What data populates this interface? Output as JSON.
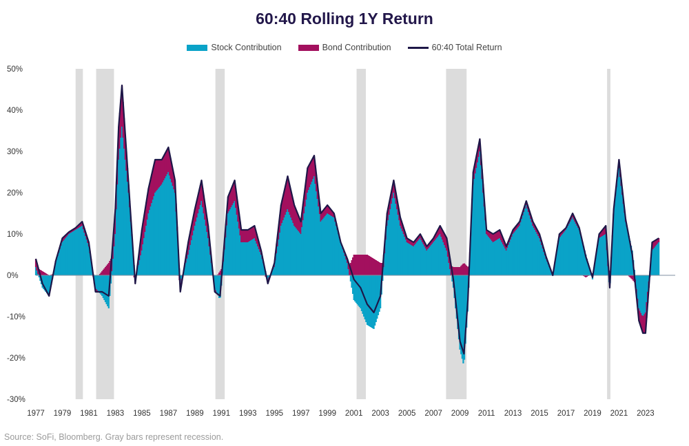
{
  "title": "60:40 Rolling 1Y Return",
  "source": "Source: SoFi, Bloomberg. Gray bars represent recession.",
  "colors": {
    "stock": "#0aa3c8",
    "bond": "#a3105e",
    "total": "#1e1748",
    "recession": "#dcdcdc",
    "zero_line": "#7f8fa0"
  },
  "legend": [
    {
      "label": "Stock Contribution",
      "kind": "bar",
      "color": "#0aa3c8"
    },
    {
      "label": "Bond Contribution",
      "kind": "bar",
      "color": "#a3105e"
    },
    {
      "label": "60:40 Total Return",
      "kind": "line",
      "color": "#1e1748"
    }
  ],
  "chart_data": {
    "type": "bar",
    "stacked": true,
    "title": "60:40 Rolling 1Y Return",
    "xlabel": "",
    "ylabel": "",
    "xlim": [
      1977,
      2024.2
    ],
    "ylim": [
      -30,
      50
    ],
    "y_ticks": [
      -30,
      -20,
      -10,
      0,
      10,
      20,
      30,
      40,
      50
    ],
    "y_tick_labels": [
      "-30%",
      "-20%",
      "-10%",
      "0%",
      "10%",
      "20%",
      "30%",
      "40%",
      "50%"
    ],
    "x_ticks": [
      1977,
      1979,
      1981,
      1983,
      1985,
      1987,
      1989,
      1991,
      1993,
      1995,
      1997,
      1999,
      2001,
      2003,
      2005,
      2007,
      2009,
      2011,
      2013,
      2015,
      2017,
      2019,
      2021,
      2023
    ],
    "x_tick_labels": [
      "1977",
      "1979",
      "1981",
      "1983",
      "1985",
      "1987",
      "1989",
      "1991",
      "1993",
      "1995",
      "1997",
      "1999",
      "2001",
      "2003",
      "2005",
      "2007",
      "2009",
      "2011",
      "2013",
      "2015",
      "2017",
      "2019",
      "2021",
      "2023"
    ],
    "recessions": [
      [
        1980.0,
        1980.55
      ],
      [
        1981.55,
        1982.9
      ],
      [
        1990.55,
        1991.25
      ],
      [
        2001.2,
        2001.9
      ],
      [
        2007.95,
        2009.5
      ],
      [
        2020.1,
        2020.35
      ]
    ],
    "series": [
      {
        "name": "Stock Contribution",
        "kind": "bar",
        "x": [
          1977.0,
          1977.5,
          1978.0,
          1978.5,
          1979.0,
          1979.5,
          1980.0,
          1980.5,
          1981.0,
          1981.5,
          1982.0,
          1982.5,
          1983.0,
          1983.25,
          1983.5,
          1984.0,
          1984.5,
          1985.0,
          1985.5,
          1986.0,
          1986.5,
          1987.0,
          1987.5,
          1987.9,
          1988.5,
          1989.0,
          1989.5,
          1990.0,
          1990.5,
          1990.9,
          1991.5,
          1992.0,
          1992.5,
          1993.0,
          1993.5,
          1994.0,
          1994.5,
          1995.0,
          1995.5,
          1996.0,
          1996.5,
          1997.0,
          1997.5,
          1998.0,
          1998.5,
          1999.0,
          1999.5,
          2000.0,
          2000.5,
          2001.0,
          2001.5,
          2002.0,
          2002.5,
          2003.0,
          2003.5,
          2004.0,
          2004.5,
          2005.0,
          2005.5,
          2006.0,
          2006.5,
          2007.0,
          2007.5,
          2008.0,
          2008.5,
          2009.0,
          2009.3,
          2009.6,
          2010.0,
          2010.5,
          2011.0,
          2011.5,
          2012.0,
          2012.5,
          2013.0,
          2013.5,
          2014.0,
          2014.5,
          2015.0,
          2015.5,
          2016.0,
          2016.5,
          2017.0,
          2017.5,
          2018.0,
          2018.5,
          2019.0,
          2019.5,
          2020.0,
          2020.3,
          2020.6,
          2021.0,
          2021.5,
          2022.0,
          2022.5,
          2022.8,
          2023.0,
          2023.5,
          2024.0
        ],
        "values": [
          2.0,
          -3.0,
          -5.0,
          3.0,
          8.0,
          10.0,
          11.0,
          12.0,
          7.0,
          -3.0,
          -5.0,
          -8.0,
          10.0,
          28.0,
          36.0,
          20.0,
          -1.0,
          6.0,
          15.0,
          20.0,
          22.0,
          25.0,
          20.0,
          -2.0,
          5.0,
          12.0,
          18.0,
          9.0,
          -3.0,
          -6.0,
          15.0,
          18.0,
          8.0,
          8.0,
          9.0,
          5.0,
          -1.0,
          2.0,
          12.0,
          16.0,
          12.0,
          10.0,
          20.0,
          24.0,
          13.0,
          15.0,
          14.0,
          8.0,
          3.0,
          -6.0,
          -8.0,
          -12.0,
          -13.0,
          -8.0,
          12.0,
          20.0,
          12.0,
          8.0,
          7.0,
          9.0,
          6.0,
          8.0,
          10.0,
          6.0,
          -3.0,
          -18.0,
          -22.0,
          -8.0,
          22.0,
          30.0,
          10.0,
          8.0,
          9.0,
          6.0,
          10.0,
          12.0,
          17.0,
          12.0,
          9.0,
          4.0,
          0.0,
          9.0,
          11.0,
          14.0,
          11.0,
          5.0,
          -1.0,
          9.0,
          10.0,
          -4.0,
          15.0,
          26.0,
          13.0,
          6.0,
          -8.0,
          -10.0,
          -9.0,
          6.0,
          8.0
        ]
      },
      {
        "name": "Bond Contribution",
        "kind": "bar",
        "x": [
          1977.0,
          1977.5,
          1978.0,
          1978.5,
          1979.0,
          1979.5,
          1980.0,
          1980.5,
          1981.0,
          1981.5,
          1982.0,
          1982.5,
          1983.0,
          1983.25,
          1983.5,
          1984.0,
          1984.5,
          1985.0,
          1985.5,
          1986.0,
          1986.5,
          1987.0,
          1987.5,
          1987.9,
          1988.5,
          1989.0,
          1989.5,
          1990.0,
          1990.5,
          1990.9,
          1991.5,
          1992.0,
          1992.5,
          1993.0,
          1993.5,
          1994.0,
          1994.5,
          1995.0,
          1995.5,
          1996.0,
          1996.5,
          1997.0,
          1997.5,
          1998.0,
          1998.5,
          1999.0,
          1999.5,
          2000.0,
          2000.5,
          2001.0,
          2001.5,
          2002.0,
          2002.5,
          2003.0,
          2003.5,
          2004.0,
          2004.5,
          2005.0,
          2005.5,
          2006.0,
          2006.5,
          2007.0,
          2007.5,
          2008.0,
          2008.5,
          2009.0,
          2009.3,
          2009.6,
          2010.0,
          2010.5,
          2011.0,
          2011.5,
          2012.0,
          2012.5,
          2013.0,
          2013.5,
          2014.0,
          2014.5,
          2015.0,
          2015.5,
          2016.0,
          2016.5,
          2017.0,
          2017.5,
          2018.0,
          2018.5,
          2019.0,
          2019.5,
          2020.0,
          2020.3,
          2020.6,
          2021.0,
          2021.5,
          2022.0,
          2022.5,
          2022.8,
          2023.0,
          2023.5,
          2024.0
        ],
        "values": [
          2.0,
          1.0,
          0.0,
          0.5,
          1.0,
          0.5,
          0.5,
          1.0,
          1.0,
          -1.0,
          1.0,
          3.0,
          6.0,
          8.0,
          10.0,
          2.0,
          -1.0,
          5.0,
          6.0,
          8.0,
          6.0,
          6.0,
          3.0,
          -2.0,
          3.0,
          4.0,
          5.0,
          3.0,
          -1.0,
          1.0,
          4.0,
          5.0,
          3.0,
          3.0,
          3.0,
          1.0,
          -1.0,
          1.0,
          5.0,
          8.0,
          5.0,
          3.0,
          6.0,
          5.0,
          2.0,
          2.0,
          1.0,
          0.0,
          1.0,
          5.0,
          5.0,
          5.0,
          4.0,
          3.0,
          3.0,
          3.0,
          2.0,
          1.0,
          1.0,
          1.0,
          1.0,
          1.0,
          2.0,
          3.0,
          2.0,
          2.0,
          3.0,
          2.0,
          3.0,
          3.0,
          1.0,
          2.0,
          2.0,
          1.0,
          1.0,
          1.0,
          1.0,
          1.0,
          1.0,
          0.5,
          0.0,
          1.0,
          0.5,
          1.0,
          0.5,
          -0.5,
          0.5,
          1.0,
          2.0,
          1.0,
          1.0,
          2.0,
          0.5,
          -1.0,
          -3.0,
          -4.0,
          -5.0,
          2.0,
          1.0
        ]
      },
      {
        "name": "60:40 Total Return",
        "kind": "line",
        "x": [
          1977.0,
          1977.5,
          1978.0,
          1978.5,
          1979.0,
          1979.5,
          1980.0,
          1980.5,
          1981.0,
          1981.5,
          1982.0,
          1982.5,
          1983.0,
          1983.25,
          1983.5,
          1984.0,
          1984.5,
          1985.0,
          1985.5,
          1986.0,
          1986.5,
          1987.0,
          1987.5,
          1987.9,
          1988.5,
          1989.0,
          1989.5,
          1990.0,
          1990.5,
          1990.9,
          1991.5,
          1992.0,
          1992.5,
          1993.0,
          1993.5,
          1994.0,
          1994.5,
          1995.0,
          1995.5,
          1996.0,
          1996.5,
          1997.0,
          1997.5,
          1998.0,
          1998.5,
          1999.0,
          1999.5,
          2000.0,
          2000.5,
          2001.0,
          2001.5,
          2002.0,
          2002.5,
          2003.0,
          2003.5,
          2004.0,
          2004.5,
          2005.0,
          2005.5,
          2006.0,
          2006.5,
          2007.0,
          2007.5,
          2008.0,
          2008.5,
          2009.0,
          2009.3,
          2009.6,
          2010.0,
          2010.5,
          2011.0,
          2011.5,
          2012.0,
          2012.5,
          2013.0,
          2013.5,
          2014.0,
          2014.5,
          2015.0,
          2015.5,
          2016.0,
          2016.5,
          2017.0,
          2017.5,
          2018.0,
          2018.5,
          2019.0,
          2019.5,
          2020.0,
          2020.3,
          2020.6,
          2021.0,
          2021.5,
          2022.0,
          2022.5,
          2022.8,
          2023.0,
          2023.5,
          2024.0
        ],
        "values": [
          4.0,
          -2.0,
          -5.0,
          3.5,
          9.0,
          10.5,
          11.5,
          13.0,
          8.0,
          -4.0,
          -4.0,
          -5.0,
          16.0,
          36.0,
          46.0,
          22.0,
          -2.0,
          11.0,
          21.0,
          28.0,
          28.0,
          31.0,
          23.0,
          -4.0,
          8.0,
          16.0,
          23.0,
          12.0,
          -4.0,
          -5.0,
          19.0,
          23.0,
          11.0,
          11.0,
          12.0,
          6.0,
          -2.0,
          3.0,
          17.0,
          24.0,
          17.0,
          13.0,
          26.0,
          29.0,
          15.0,
          17.0,
          15.0,
          8.0,
          4.0,
          -1.0,
          -3.0,
          -7.0,
          -9.0,
          -5.0,
          15.0,
          23.0,
          14.0,
          9.0,
          8.0,
          10.0,
          7.0,
          9.0,
          12.0,
          9.0,
          -1.0,
          -16.0,
          -19.0,
          -6.0,
          25.0,
          33.0,
          11.0,
          10.0,
          11.0,
          7.0,
          11.0,
          13.0,
          18.0,
          13.0,
          10.0,
          4.5,
          0.0,
          10.0,
          11.5,
          15.0,
          11.5,
          4.5,
          -0.5,
          10.0,
          12.0,
          -3.0,
          16.0,
          28.0,
          13.5,
          5.0,
          -11.0,
          -14.0,
          -14.0,
          8.0,
          9.0
        ]
      }
    ]
  }
}
